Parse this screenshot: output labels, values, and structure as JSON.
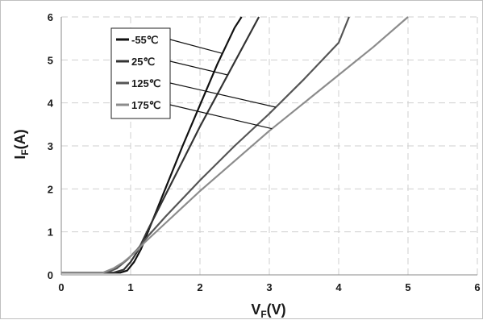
{
  "chart_data": {
    "type": "line",
    "xlabel_main": "V",
    "xlabel_sub": "F",
    "xlabel_unit": "(V)",
    "ylabel_main": "I",
    "ylabel_sub": "F",
    "ylabel_unit": "(A)",
    "xlim": [
      0,
      6
    ],
    "ylim": [
      0,
      6
    ],
    "xticks": [
      "0",
      "1",
      "2",
      "3",
      "4",
      "5",
      "6"
    ],
    "yticks": [
      "0",
      "1",
      "2",
      "3",
      "4",
      "5",
      "6"
    ],
    "grid": true,
    "legend_position": "top-left",
    "series": [
      {
        "name": "-55℃",
        "color": "#111111",
        "points": [
          [
            0,
            0.05
          ],
          [
            0.85,
            0.05
          ],
          [
            0.95,
            0.1
          ],
          [
            1.05,
            0.3
          ],
          [
            1.15,
            0.6
          ],
          [
            1.3,
            1.2
          ],
          [
            1.5,
            2.0
          ],
          [
            1.75,
            3.0
          ],
          [
            2.0,
            3.95
          ],
          [
            2.25,
            4.9
          ],
          [
            2.5,
            5.75
          ],
          [
            2.6,
            6.0
          ]
        ]
      },
      {
        "name": "25℃",
        "color": "#333333",
        "points": [
          [
            0,
            0.05
          ],
          [
            0.75,
            0.05
          ],
          [
            0.9,
            0.12
          ],
          [
            1.0,
            0.3
          ],
          [
            1.1,
            0.55
          ],
          [
            1.25,
            1.05
          ],
          [
            1.5,
            1.85
          ],
          [
            1.75,
            2.65
          ],
          [
            2.0,
            3.45
          ],
          [
            2.25,
            4.2
          ],
          [
            2.5,
            4.95
          ],
          [
            2.75,
            5.7
          ],
          [
            2.85,
            6.0
          ]
        ]
      },
      {
        "name": "125℃",
        "color": "#555555",
        "points": [
          [
            0,
            0.05
          ],
          [
            0.65,
            0.05
          ],
          [
            0.8,
            0.15
          ],
          [
            0.95,
            0.35
          ],
          [
            1.1,
            0.6
          ],
          [
            1.25,
            0.9
          ],
          [
            1.5,
            1.35
          ],
          [
            2.0,
            2.2
          ],
          [
            2.5,
            3.0
          ],
          [
            3.0,
            3.75
          ],
          [
            3.5,
            4.55
          ],
          [
            4.0,
            5.4
          ],
          [
            4.15,
            6.0
          ]
        ]
      },
      {
        "name": "175℃",
        "color": "#8c8c8c",
        "points": [
          [
            0,
            0.05
          ],
          [
            0.6,
            0.05
          ],
          [
            0.75,
            0.15
          ],
          [
            0.9,
            0.3
          ],
          [
            1.05,
            0.5
          ],
          [
            1.2,
            0.75
          ],
          [
            1.5,
            1.2
          ],
          [
            2.0,
            1.95
          ],
          [
            2.5,
            2.65
          ],
          [
            3.0,
            3.35
          ],
          [
            3.5,
            4.0
          ],
          [
            4.0,
            4.65
          ],
          [
            4.5,
            5.3
          ],
          [
            5.0,
            6.0
          ]
        ]
      }
    ]
  }
}
